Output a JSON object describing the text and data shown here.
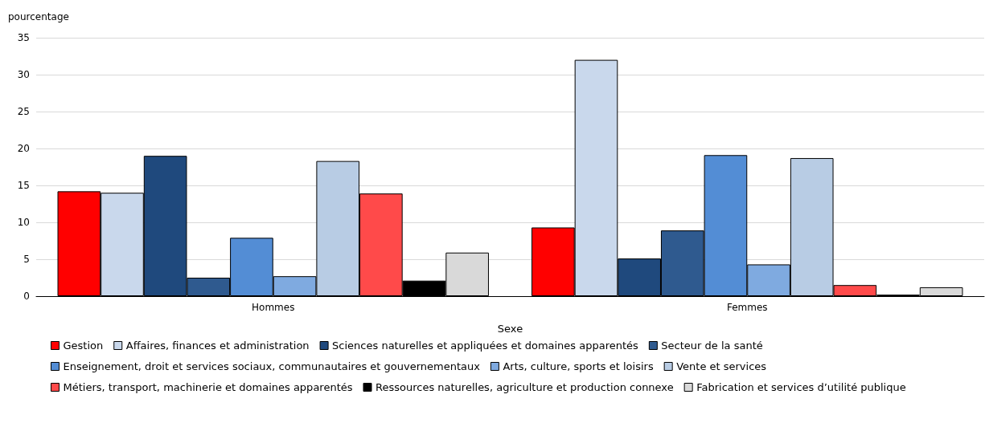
{
  "chart_data": {
    "type": "bar",
    "xlabel": "Sexe",
    "ylabel": "pourcentage",
    "categories": [
      "Hommes",
      "Femmes"
    ],
    "ylim": [
      0,
      35
    ],
    "yticks": [
      0,
      5,
      10,
      15,
      20,
      25,
      30,
      35
    ],
    "grid": "y",
    "legend": "bottom",
    "series": [
      {
        "name": "Gestion",
        "color": "#ff0000",
        "values": [
          14.2,
          9.3
        ]
      },
      {
        "name": "Affaires, finances et administration",
        "color": "#c9d8ec",
        "values": [
          14.0,
          32.0
        ]
      },
      {
        "name": "Sciences naturelles et appliquées et domaines apparentés",
        "color": "#1f497d",
        "values": [
          19.0,
          5.1
        ]
      },
      {
        "name": "Secteur de la santé",
        "color": "#2f5a8f",
        "values": [
          2.5,
          8.9
        ]
      },
      {
        "name": "Enseignement, droit et services sociaux, communautaires et gouvernementaux",
        "color": "#538dd5",
        "values": [
          7.9,
          19.1
        ]
      },
      {
        "name": "Arts, culture, sports et loisirs",
        "color": "#7faae0",
        "values": [
          2.7,
          4.3
        ]
      },
      {
        "name": "Vente et services",
        "color": "#b8cce4",
        "values": [
          18.3,
          18.7
        ]
      },
      {
        "name": "Métiers, transport, machinerie et domaines apparentés",
        "color": "#ff4a4a",
        "values": [
          13.9,
          1.5
        ]
      },
      {
        "name": "Ressources naturelles, agriculture et production connexe",
        "color": "#000000",
        "values": [
          2.1,
          0.2
        ]
      },
      {
        "name": "Fabrication et services d’utilité publique",
        "color": "#d9d9d9",
        "values": [
          5.9,
          1.2
        ]
      }
    ]
  }
}
